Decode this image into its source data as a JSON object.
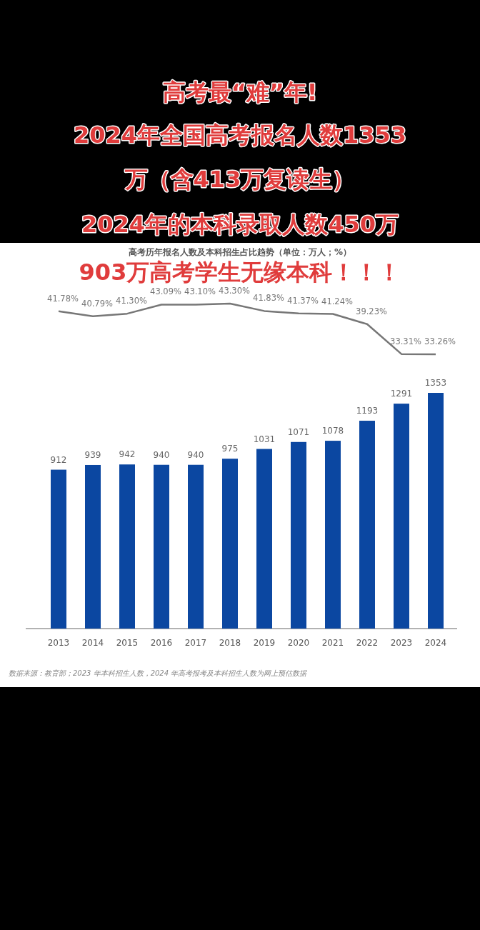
{
  "chart_data": [
    {
      "type": "line",
      "title": "高考最“难”年!\n2024年全国高考报名人数1353\n万（含413万复读生）\n2024年的本科录取人数450万\n903万高考学生无缘本科！！！",
      "subtitle": "高考历年报名人数及本科招生占比趋势（单位：万人；%）",
      "categories": [
        null,
        null,
        null,
        null,
        null,
        null,
        null,
        null,
        null,
        null,
        null,
        null
      ],
      "tick_labels": false,
      "series": [
        {
          "color": "#777777",
          "values": [
            41.78,
            40.79,
            41.3,
            43.09,
            43.1,
            43.3,
            41.83,
            41.37,
            41.24,
            39.23,
            33.31,
            33.26
          ],
          "value_labels": [
            "41.78%",
            "40.79%",
            "41.30%",
            "43.09%",
            "43.10%",
            "43.30%",
            "41.83%",
            "41.37%",
            "41.24%",
            "39.23%",
            "33.31%",
            "33.26%"
          ]
        }
      ]
    },
    {
      "type": "bar",
      "categories": [
        "2013",
        "2014",
        "2015",
        "2016",
        "2017",
        "2018",
        "2019",
        "2020",
        "2021",
        "2022",
        "2023",
        "2024"
      ],
      "tick_labels": "x",
      "series": [
        {
          "color": "#0b47a1",
          "values": [
            912,
            939,
            942,
            940,
            940,
            975,
            1031,
            1071,
            1078,
            1193,
            1291,
            1353
          ]
        }
      ],
      "data_labels": true,
      "annotations": [
        "数据来源：教育部；2023 年本科招生人数，2024 年高考报考及本科招生人数为网上预估数据"
      ]
    }
  ]
}
